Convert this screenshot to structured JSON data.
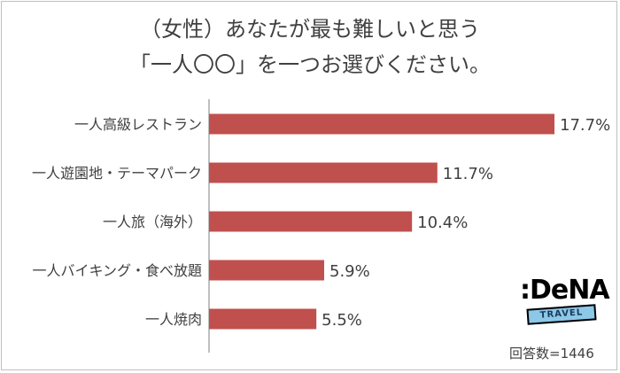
{
  "title": {
    "line1": "（女性）あなたが最も難しいと思う",
    "line2": "「一人〇〇」を一つお選びください。"
  },
  "logo": {
    "brand": ":DeNA",
    "tag": "TRAVEL"
  },
  "footer_note": "回答数=1446",
  "colors": {
    "bar": "#c0504d",
    "axis": "#7f7f7f",
    "text": "#404040"
  },
  "chart_data": {
    "type": "bar",
    "orientation": "horizontal",
    "categories": [
      "一人高級レストラン",
      "一人遊園地・テーマパーク",
      "一人旅（海外）",
      "一人バイキング・食べ放題",
      "一人焼肉"
    ],
    "values": [
      17.7,
      11.7,
      10.4,
      5.9,
      5.5
    ],
    "value_labels": [
      "17.7%",
      "11.7%",
      "10.4%",
      "5.9%",
      "5.5%"
    ],
    "unit": "%",
    "xlim": [
      0,
      17.7
    ],
    "grid": false,
    "legend": "none"
  }
}
